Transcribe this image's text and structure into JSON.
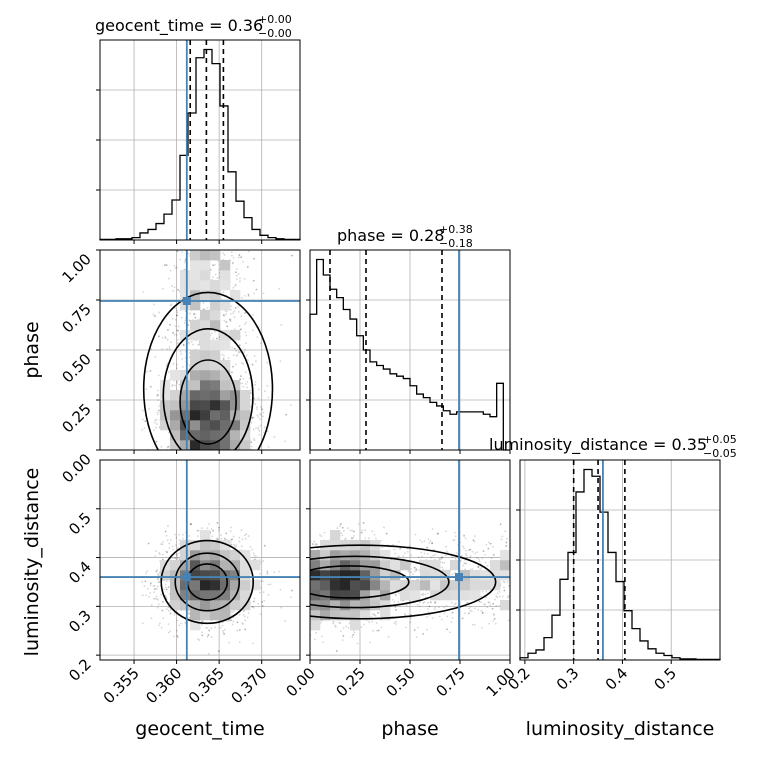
{
  "chart_data": {
    "type": "corner",
    "parameters": [
      "geocent_time",
      "phase",
      "luminosity_distance"
    ],
    "truths": {
      "geocent_time": 0.3612,
      "phase": 0.745,
      "luminosity_distance": 0.36
    },
    "titles": [
      {
        "param": "geocent_time",
        "text": "geocent_time = 0.36",
        "sup": "+0.00",
        "sub": "−0.00"
      },
      {
        "param": "phase",
        "text": "phase = 0.28",
        "sup": "+0.38",
        "sub": "−0.18"
      },
      {
        "param": "luminosity_distance",
        "text": "luminosity_distance = 0.35",
        "sup": "+0.05",
        "sub": "−0.05"
      }
    ],
    "axis_labels": {
      "geocent_time": "geocent_time",
      "phase": "phase",
      "luminosity_distance": "luminosity_distance"
    },
    "ranges": {
      "geocent_time": [
        0.351,
        0.3745
      ],
      "phase": [
        0.0,
        1.0
      ],
      "luminosity_distance": [
        0.19,
        0.6
      ]
    },
    "ticks": {
      "geocent_time": {
        "values": [
          0.355,
          0.36,
          0.365,
          0.37
        ],
        "labels": [
          "0.355",
          "0.360",
          "0.365",
          "0.370"
        ]
      },
      "phase": {
        "values": [
          0.0,
          0.25,
          0.5,
          0.75,
          1.0
        ],
        "labels": [
          "0.00",
          "0.25",
          "0.50",
          "0.75",
          "1.00"
        ]
      },
      "luminosity_distance": {
        "values": [
          0.2,
          0.3,
          0.4,
          0.5
        ],
        "labels": [
          "0.2",
          "0.3",
          "0.4",
          "0.5"
        ]
      }
    },
    "quantiles": {
      "geocent_time": [
        0.3616,
        0.3635,
        0.3655
      ],
      "phase": [
        0.1,
        0.28,
        0.66
      ],
      "luminosity_distance": [
        0.3,
        0.35,
        0.405
      ]
    },
    "histograms": {
      "geocent_time": [
        0.5,
        0.5,
        1,
        1,
        2,
        6,
        9,
        14,
        22,
        34,
        72,
        108,
        155,
        162,
        150,
        114,
        58,
        33,
        19,
        9,
        4,
        2,
        1,
        0.5,
        0.5
      ],
      "phase": [
        114,
        160,
        147,
        135,
        128,
        118,
        110,
        96,
        84,
        74,
        71,
        68,
        64,
        62,
        60,
        54,
        47,
        44,
        40,
        37,
        33,
        30,
        32,
        32,
        32,
        32,
        30,
        28,
        56,
        0
      ],
      "luminosity_distance": [
        2,
        6,
        9,
        20,
        40,
        72,
        96,
        150,
        170,
        164,
        132,
        96,
        70,
        44,
        28,
        17,
        10,
        6,
        4,
        2,
        1,
        1,
        0.5,
        0.5,
        0.5
      ]
    },
    "scatter_points": 3000,
    "grid": true
  }
}
